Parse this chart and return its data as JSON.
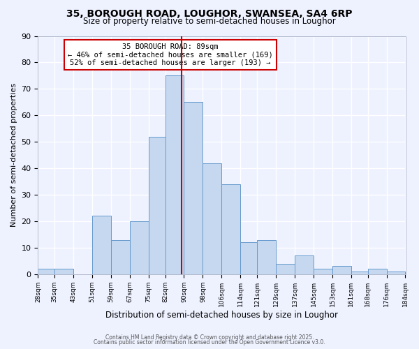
{
  "title": "35, BOROUGH ROAD, LOUGHOR, SWANSEA, SA4 6RP",
  "subtitle": "Size of property relative to semi-detached houses in Loughor",
  "xlabel": "Distribution of semi-detached houses by size in Loughor",
  "ylabel": "Number of semi-detached properties",
  "bin_edges": [
    28,
    35,
    43,
    51,
    59,
    67,
    75,
    82,
    90,
    98,
    106,
    114,
    121,
    129,
    137,
    145,
    153,
    161,
    168,
    176,
    184
  ],
  "bin_counts": [
    2,
    2,
    0,
    22,
    13,
    20,
    52,
    75,
    65,
    42,
    34,
    12,
    13,
    4,
    7,
    2,
    3,
    1,
    2,
    1
  ],
  "bar_color": "#c5d8f0",
  "bar_edge_color": "#6699cc",
  "reference_line_x": 89,
  "reference_line_color": "#cc0000",
  "annotation_text": "35 BOROUGH ROAD: 89sqm\n← 46% of semi-detached houses are smaller (169)\n52% of semi-detached houses are larger (193) →",
  "annotation_box_color": "#ffffff",
  "annotation_box_edge_color": "#cc0000",
  "ylim": [
    0,
    90
  ],
  "yticks": [
    0,
    10,
    20,
    30,
    40,
    50,
    60,
    70,
    80,
    90
  ],
  "tick_labels": [
    "28sqm",
    "35sqm",
    "43sqm",
    "51sqm",
    "59sqm",
    "67sqm",
    "75sqm",
    "82sqm",
    "90sqm",
    "98sqm",
    "106sqm",
    "114sqm",
    "121sqm",
    "129sqm",
    "137sqm",
    "145sqm",
    "153sqm",
    "161sqm",
    "168sqm",
    "176sqm",
    "184sqm"
  ],
  "footer_lines": [
    "Contains HM Land Registry data © Crown copyright and database right 2025.",
    "Contains public sector information licensed under the Open Government Licence v3.0."
  ],
  "background_color": "#eef2ff",
  "grid_color": "#ffffff"
}
